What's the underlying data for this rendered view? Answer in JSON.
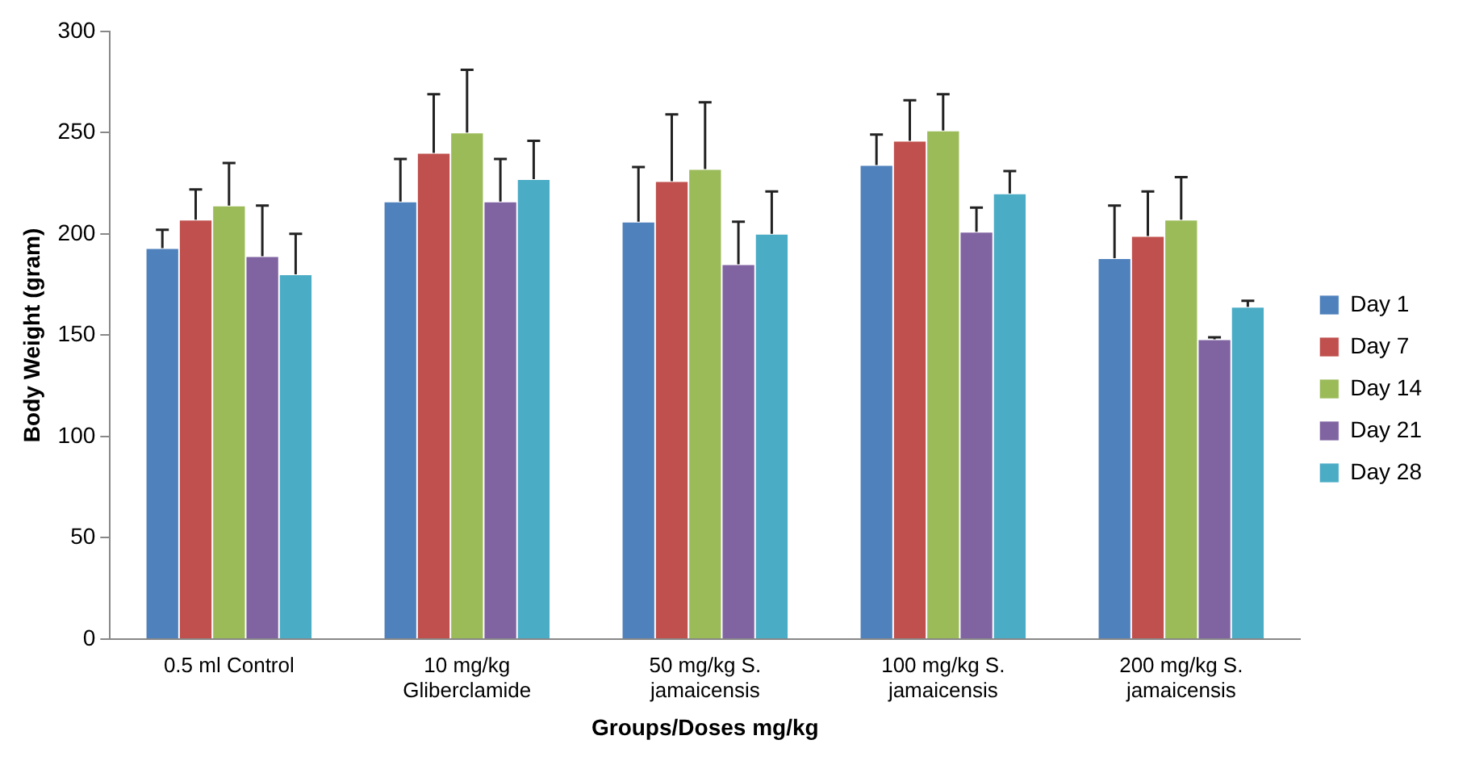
{
  "chart_data": {
    "type": "bar",
    "xlabel": "Groups/Doses mg/kg",
    "ylabel": "Body Weight (gram)",
    "categories": [
      "0.5 ml Control",
      "10 mg/kg Gliberclamide",
      "50 mg/kg S. jamaicensis",
      "100 mg/kg S. jamaicensis",
      "200 mg/kg S. jamaicensis"
    ],
    "series": [
      {
        "name": "Day 1",
        "color": "#4f81bd",
        "values": [
          193,
          216,
          206,
          234,
          188
        ],
        "errors": [
          [
            193,
            202
          ],
          [
            216,
            237
          ],
          [
            206,
            233
          ],
          [
            234,
            249
          ],
          [
            188,
            214
          ]
        ]
      },
      {
        "name": "Day 7",
        "color": "#c0504d",
        "values": [
          207,
          240,
          226,
          246,
          199
        ],
        "errors": [
          [
            207,
            222
          ],
          [
            240,
            269
          ],
          [
            226,
            259
          ],
          [
            246,
            266
          ],
          [
            199,
            221
          ]
        ]
      },
      {
        "name": "Day 14",
        "color": "#9bbb59",
        "values": [
          214,
          250,
          232,
          251,
          207
        ],
        "errors": [
          [
            214,
            235
          ],
          [
            250,
            281
          ],
          [
            232,
            265
          ],
          [
            251,
            269
          ],
          [
            207,
            228
          ]
        ]
      },
      {
        "name": "Day 21",
        "color": "#8064a2",
        "values": [
          189,
          216,
          185,
          201,
          148
        ],
        "errors": [
          [
            189,
            214
          ],
          [
            216,
            237
          ],
          [
            185,
            206
          ],
          [
            201,
            213
          ],
          [
            148,
            149
          ]
        ]
      },
      {
        "name": "Day 28",
        "color": "#4bacc6",
        "values": [
          180,
          227,
          200,
          220,
          164
        ],
        "errors": [
          [
            180,
            200
          ],
          [
            227,
            246
          ],
          [
            200,
            221
          ],
          [
            220,
            231
          ],
          [
            164,
            167
          ]
        ]
      }
    ],
    "ylim": [
      0,
      300
    ],
    "yticks": [
      0,
      50,
      100,
      150,
      200,
      250,
      300
    ],
    "grid": false,
    "legend": "right"
  }
}
